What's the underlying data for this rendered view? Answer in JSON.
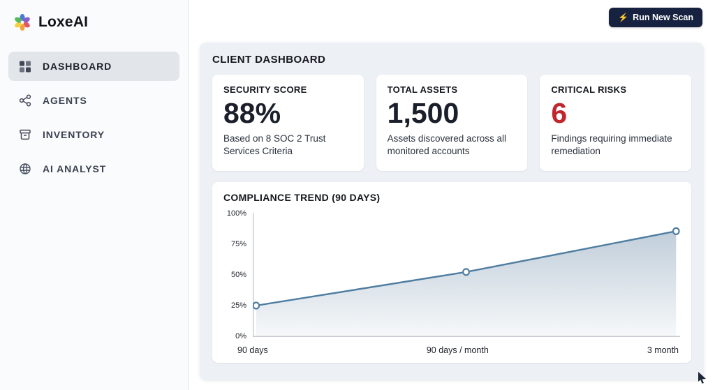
{
  "app": {
    "name": "LoxeAI",
    "logo_icon": "flower-star-icon"
  },
  "header": {
    "run_scan_button": {
      "label": "Run New Scan",
      "icon": "lightning-icon",
      "glyph": "⚡",
      "bg_color": "#16223f"
    }
  },
  "sidebar": {
    "items": [
      {
        "label": "DASHBOARD",
        "icon": "dashboard-grid-icon",
        "active": true
      },
      {
        "label": "AGENTS",
        "icon": "agents-network-icon",
        "active": false
      },
      {
        "label": "INVENTORY",
        "icon": "inventory-box-icon",
        "active": false
      },
      {
        "label": "AI ANALYST",
        "icon": "ai-analyst-globe-icon",
        "active": false
      }
    ]
  },
  "main": {
    "title": "CLIENT DASHBOARD",
    "stat_cards": [
      {
        "title": "SECURITY SCORE",
        "value": "88%",
        "description": "Based on 8 SOC 2 Trust Services Criteria",
        "value_color": "#1a1f2b"
      },
      {
        "title": "TOTAL ASSETS",
        "value": "1,500",
        "description": "Assets discovered across all monitored accounts",
        "value_color": "#1a1f2b"
      },
      {
        "title": "CRITICAL RISKS",
        "value": "6",
        "description": "Findings requiring immediate remediation",
        "value_color": "#c0262c"
      }
    ]
  },
  "chart_data": {
    "type": "line",
    "title": "COMPLIANCE TREND (90 DAYS)",
    "x_labels": [
      "90 days",
      "90 days / month",
      "3 month"
    ],
    "values": [
      25,
      53,
      87
    ],
    "ylim": [
      0,
      100
    ],
    "yticks": [
      "0%",
      "25%",
      "50%",
      "75%",
      "100%"
    ],
    "grid": false,
    "legend": false,
    "line_color": "#4e7da1",
    "area_color": "#8ea6bb",
    "point_fill": "#ffffff",
    "axis_color": "#c7cbd1"
  }
}
